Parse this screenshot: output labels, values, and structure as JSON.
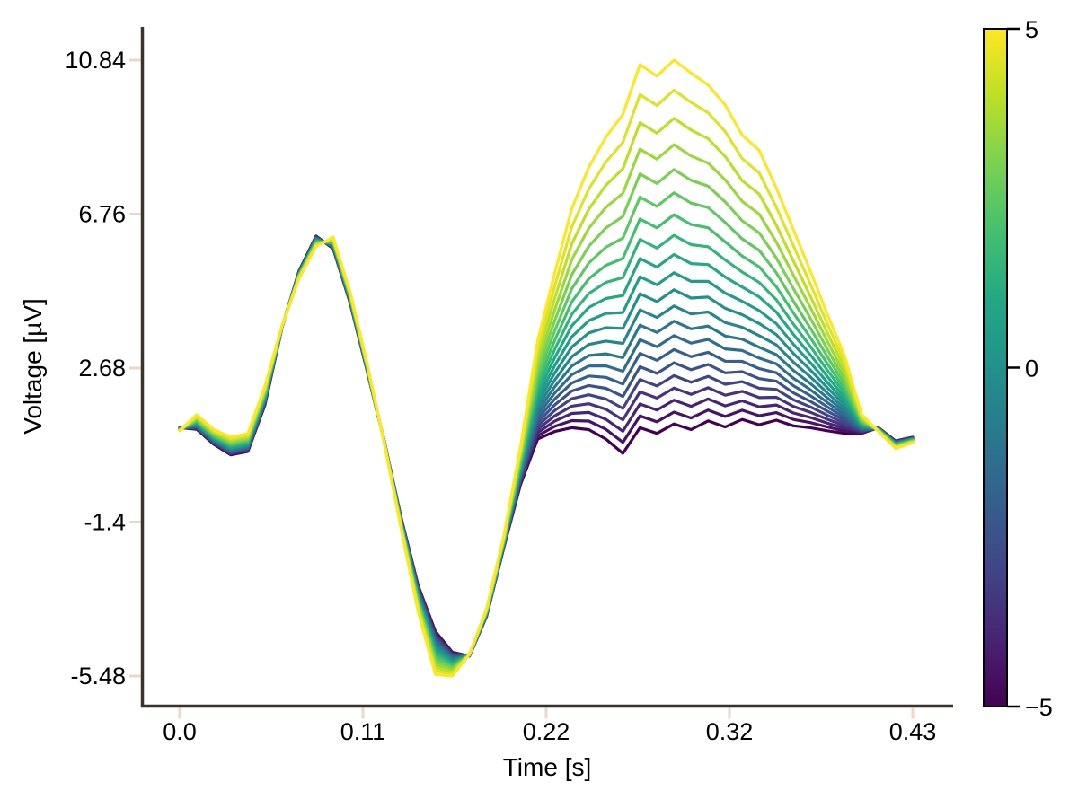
{
  "figure": {
    "background": "#ffffff"
  },
  "colors": {
    "spine": "#3a332c",
    "tick_mark": "#eed7c8",
    "text": "#000000",
    "colorbar_border": "#000000"
  },
  "chart_data": {
    "type": "line",
    "title": "",
    "xlabel": "Time [s]",
    "ylabel": "Voltage [µV]",
    "grid": false,
    "xlim": [
      -0.023,
      0.455
    ],
    "ylim": [
      -6.27,
      11.72
    ],
    "x_ticks": {
      "values": [
        0,
        0.1075,
        0.215,
        0.3225,
        0.43
      ],
      "labels": [
        "0.0",
        "0.11",
        "0.22",
        "0.32",
        "0.43"
      ]
    },
    "y_ticks": {
      "values": [
        10.84,
        6.76,
        2.68,
        -1.4,
        -5.48
      ],
      "labels": [
        "10.84",
        "6.76",
        "2.68",
        "-1.4",
        "-5.48"
      ]
    },
    "colorbar": {
      "colormap": "viridis",
      "range": [
        -5,
        5
      ],
      "tick_values": [
        5,
        0,
        -5
      ],
      "tick_labels": [
        "5",
        "0",
        "−5"
      ],
      "position": "right"
    },
    "colormap_stops": [
      {
        "u": 0.0,
        "color": "#440154"
      },
      {
        "u": 0.1,
        "color": "#482475"
      },
      {
        "u": 0.2,
        "color": "#414487"
      },
      {
        "u": 0.3,
        "color": "#355f8d"
      },
      {
        "u": 0.4,
        "color": "#2a788e"
      },
      {
        "u": 0.5,
        "color": "#21918c"
      },
      {
        "u": 0.6,
        "color": "#22a884"
      },
      {
        "u": 0.7,
        "color": "#44bf70"
      },
      {
        "u": 0.8,
        "color": "#7ad151"
      },
      {
        "u": 0.9,
        "color": "#bddf26"
      },
      {
        "u": 1.0,
        "color": "#fde725"
      }
    ],
    "line_width": 3.2,
    "series_levels": [
      -5,
      -4.5,
      -4,
      -3.5,
      -3,
      -2.5,
      -2,
      -1.5,
      -1,
      -0.5,
      0,
      0.5,
      1,
      1.5,
      2,
      2.5,
      3,
      3.5,
      4,
      4.5,
      5
    ],
    "series_rule": "For level c: u=(c+5)/10, w=0.65*u+0.35*u^3, value[i] = v_at_level_minus5[i] + w*(v_at_level_plus5[i]-v_at_level_minus5[i]); line color = viridis(u)",
    "x": [
      0,
      0.01,
      0.02,
      0.03,
      0.04,
      0.05,
      0.06,
      0.07,
      0.08,
      0.09,
      0.1,
      0.11,
      0.12,
      0.13,
      0.14,
      0.15,
      0.16,
      0.17,
      0.18,
      0.19,
      0.2,
      0.21,
      0.22,
      0.23,
      0.24,
      0.25,
      0.26,
      0.27,
      0.28,
      0.29,
      0.3,
      0.31,
      0.32,
      0.33,
      0.34,
      0.35,
      0.36,
      0.37,
      0.38,
      0.39,
      0.4,
      0.41,
      0.42,
      0.43
    ],
    "v_at_level_plus5": [
      1.02,
      1.44,
      1.05,
      0.85,
      0.94,
      2.2,
      3.8,
      5.05,
      5.9,
      6.15,
      4.7,
      2.8,
      0.7,
      -1.6,
      -3.8,
      -5.44,
      -5.48,
      -4.9,
      -3.7,
      -1.8,
      0.6,
      3.4,
      5.2,
      6.9,
      8.0,
      8.8,
      9.4,
      10.72,
      10.42,
      10.84,
      10.5,
      10.18,
      9.65,
      8.85,
      8.45,
      7.45,
      6.35,
      5.25,
      4.1,
      3.0,
      1.45,
      1.0,
      0.55,
      0.7
    ],
    "v_at_level_minus5": [
      1.1,
      1.06,
      0.66,
      0.38,
      0.47,
      1.7,
      3.75,
      5.25,
      6.18,
      5.85,
      4.4,
      2.6,
      0.75,
      -1.3,
      -3.1,
      -4.3,
      -4.85,
      -4.95,
      -3.9,
      -2.1,
      -0.4,
      0.8,
      1.0,
      1.1,
      1.05,
      0.8,
      0.42,
      1.1,
      0.95,
      1.2,
      1.05,
      1.28,
      1.12,
      1.32,
      1.18,
      1.3,
      1.15,
      1.1,
      1.02,
      0.95,
      0.95,
      1.1,
      0.75,
      0.85
    ]
  }
}
